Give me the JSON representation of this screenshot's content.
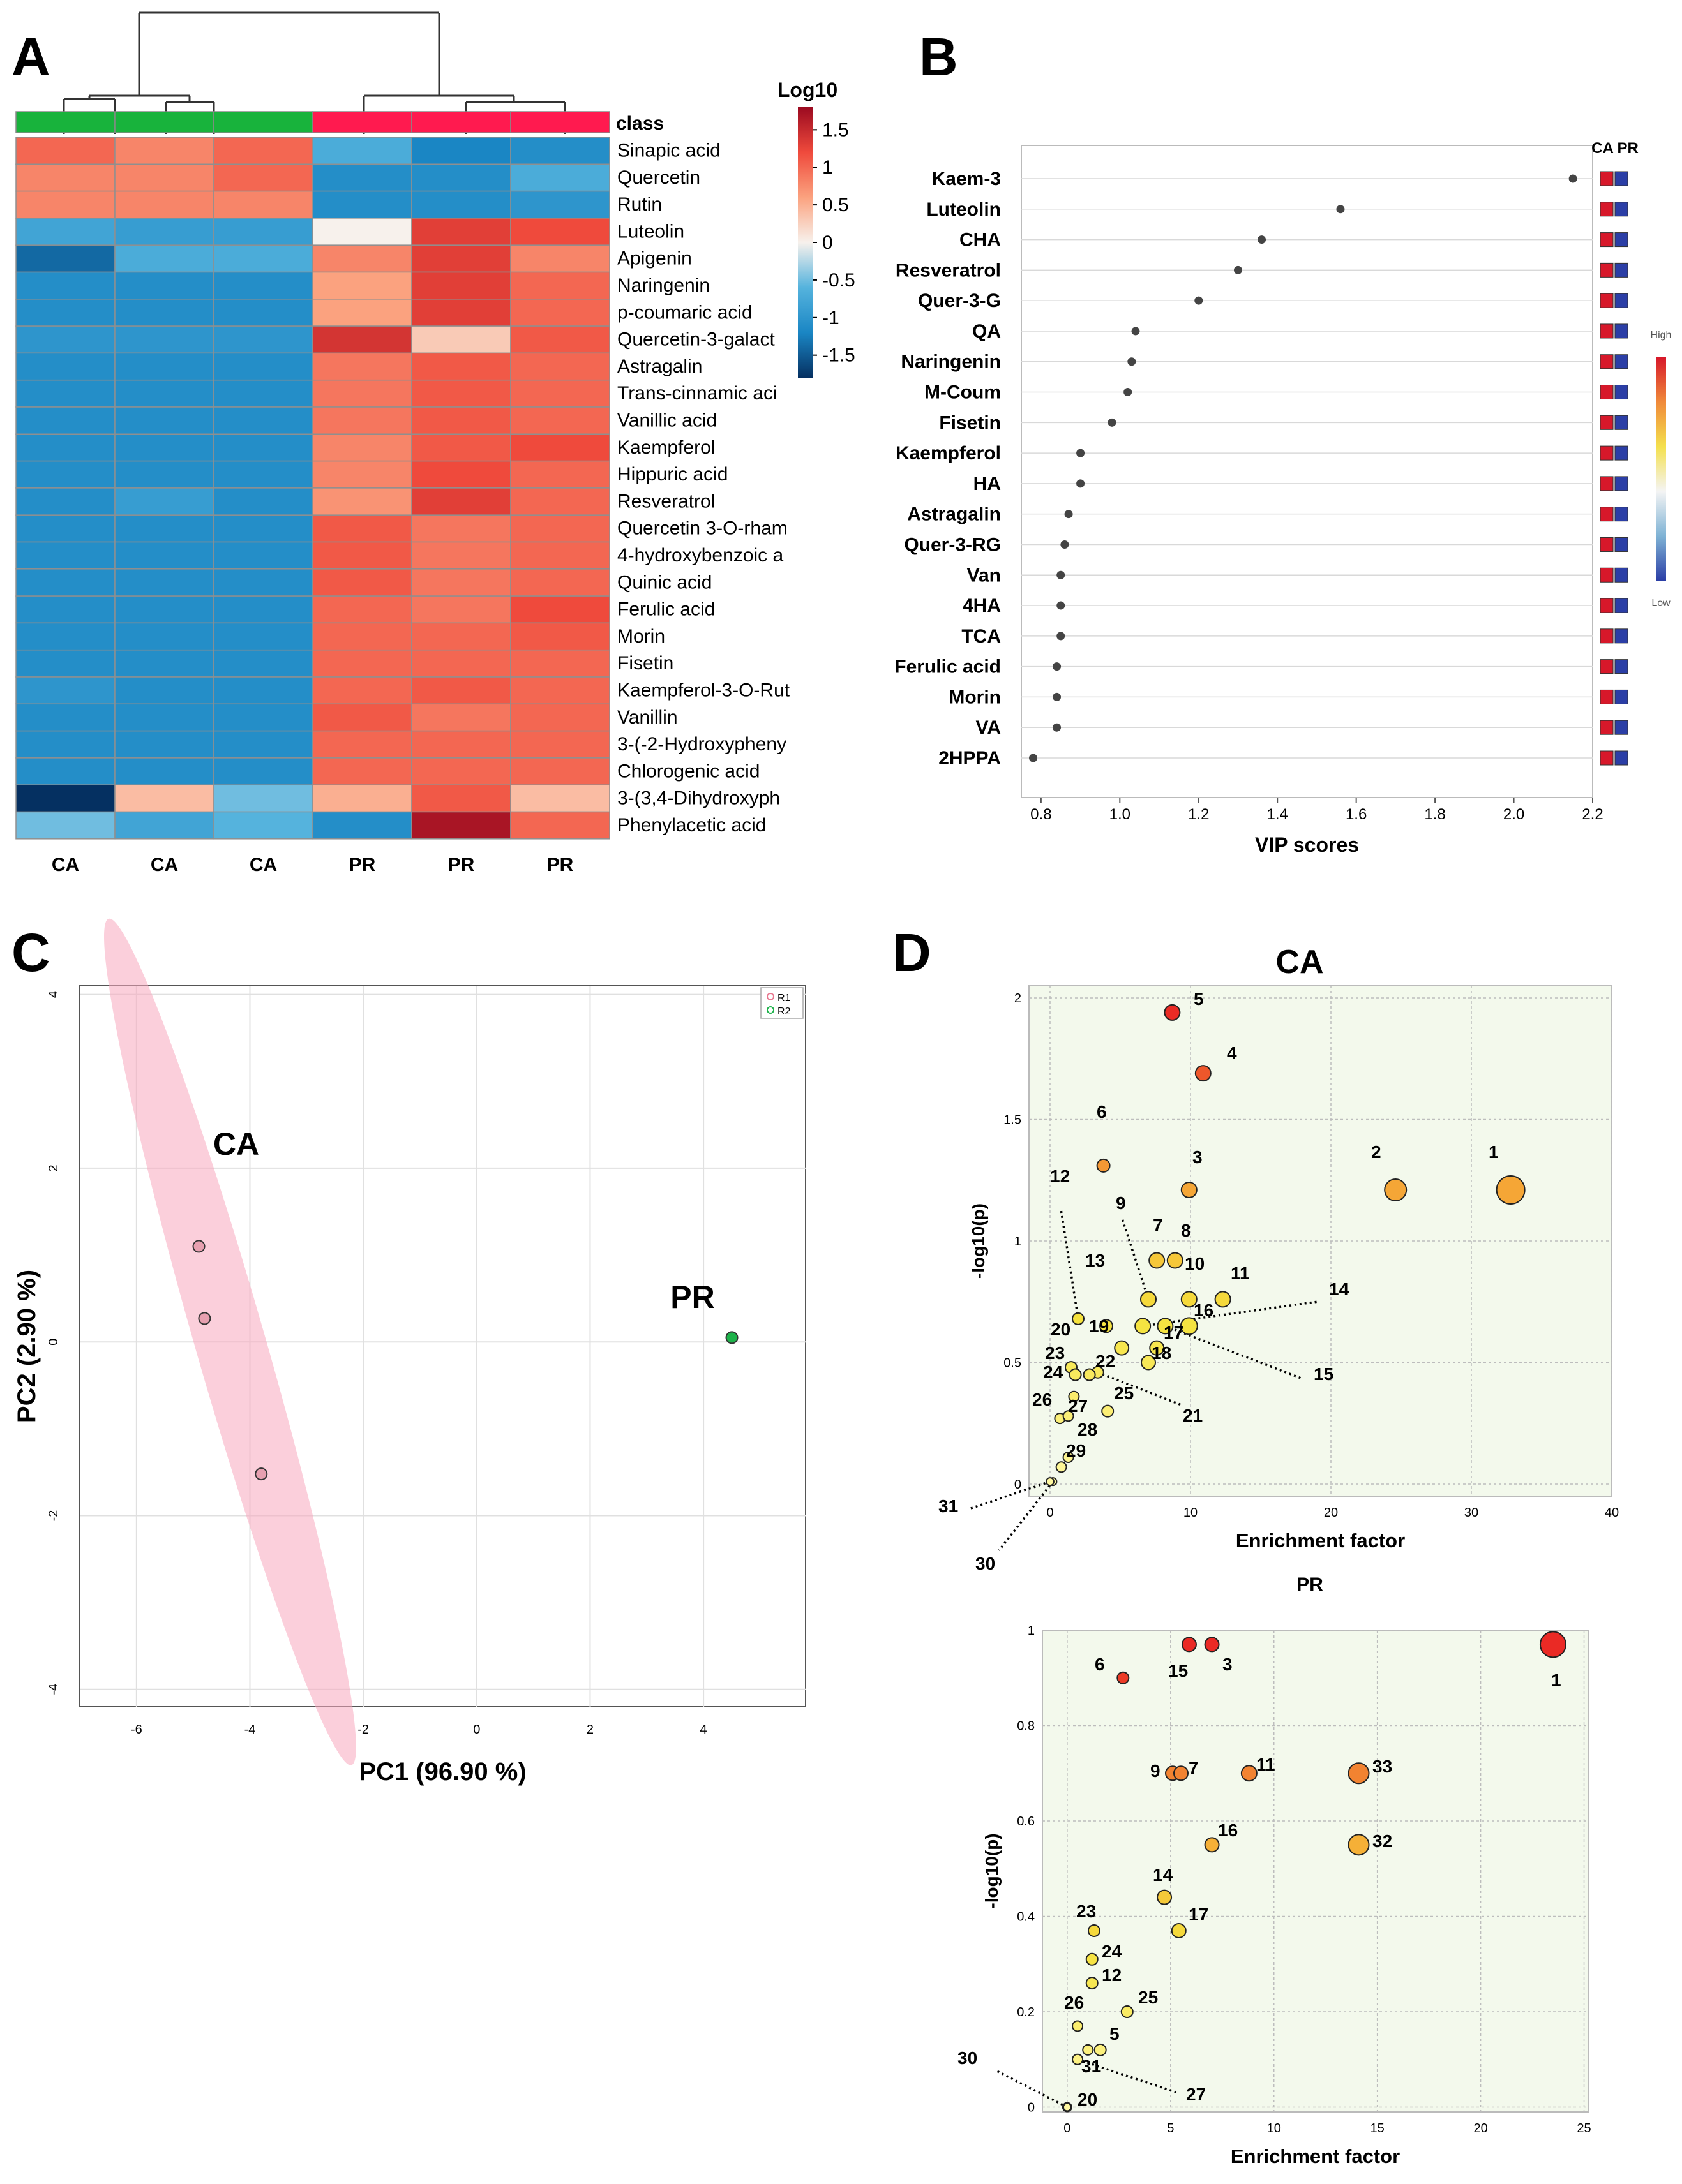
{
  "panel_labels": {
    "a": "A",
    "b": "B",
    "c": "C",
    "d": "D"
  },
  "chart_data": [
    {
      "type": "heatmap",
      "panel": "A",
      "legend_title": "Log10",
      "class_label": "class",
      "scale_ticks": [
        "1.5",
        "1",
        "0.5",
        "0",
        "-0.5",
        "-1",
        "-1.5"
      ],
      "scale_range": [
        -1.8,
        1.8
      ],
      "class_colors": {
        "CA": "#18b33c",
        "PR": "#ff1a4f"
      },
      "columns": [
        "CA",
        "CA",
        "CA",
        "PR",
        "PR",
        "PR"
      ],
      "rows": [
        {
          "name": "Sinapic acid",
          "values": [
            1.0,
            0.8,
            1.0,
            -0.7,
            -1.2,
            -1.1
          ]
        },
        {
          "name": "Quercetin",
          "values": [
            0.8,
            0.8,
            1.0,
            -1.1,
            -1.1,
            -0.7
          ]
        },
        {
          "name": "Rutin",
          "values": [
            0.8,
            0.8,
            0.8,
            -1.1,
            -1.1,
            -1.0
          ]
        },
        {
          "name": "Luteolin",
          "values": [
            -0.8,
            -0.9,
            -0.9,
            0.0,
            1.3,
            1.2
          ]
        },
        {
          "name": "Apigenin",
          "values": [
            -1.4,
            -0.7,
            -0.7,
            0.8,
            1.3,
            0.8
          ]
        },
        {
          "name": "Naringenin",
          "values": [
            -1.1,
            -1.1,
            -1.1,
            0.6,
            1.3,
            1.0
          ]
        },
        {
          "name": "p-coumaric acid",
          "values": [
            -1.1,
            -1.1,
            -1.1,
            0.6,
            1.3,
            1.0
          ]
        },
        {
          "name": "Quercetin-3-galact",
          "values": [
            -1.0,
            -1.0,
            -1.0,
            1.4,
            0.3,
            1.1
          ]
        },
        {
          "name": "Astragalin",
          "values": [
            -1.1,
            -1.1,
            -1.1,
            0.9,
            1.1,
            1.0
          ]
        },
        {
          "name": "Trans-cinnamic aci",
          "values": [
            -1.1,
            -1.1,
            -1.1,
            0.9,
            1.1,
            1.0
          ]
        },
        {
          "name": "Vanillic acid",
          "values": [
            -1.1,
            -1.1,
            -1.1,
            0.9,
            1.1,
            1.0
          ]
        },
        {
          "name": "Kaempferol",
          "values": [
            -1.1,
            -1.1,
            -1.1,
            0.8,
            1.1,
            1.2
          ]
        },
        {
          "name": "Hippuric acid",
          "values": [
            -1.1,
            -1.1,
            -1.1,
            0.8,
            1.2,
            1.0
          ]
        },
        {
          "name": "Resveratrol",
          "values": [
            -1.1,
            -0.9,
            -1.1,
            0.7,
            1.3,
            1.0
          ]
        },
        {
          "name": "Quercetin 3-O-rham",
          "values": [
            -1.1,
            -1.1,
            -1.1,
            1.1,
            0.9,
            1.0
          ]
        },
        {
          "name": "4-hydroxybenzoic a",
          "values": [
            -1.1,
            -1.1,
            -1.1,
            1.1,
            0.9,
            1.0
          ]
        },
        {
          "name": "Quinic acid",
          "values": [
            -1.1,
            -1.1,
            -1.1,
            1.1,
            0.9,
            1.0
          ]
        },
        {
          "name": "Ferulic acid",
          "values": [
            -1.1,
            -1.1,
            -1.1,
            1.0,
            0.9,
            1.2
          ]
        },
        {
          "name": "Morin",
          "values": [
            -1.1,
            -1.1,
            -1.1,
            1.0,
            1.0,
            1.1
          ]
        },
        {
          "name": "Fisetin",
          "values": [
            -1.1,
            -1.1,
            -1.1,
            1.0,
            1.0,
            1.0
          ]
        },
        {
          "name": "Kaempferol-3-O-Rut",
          "values": [
            -1.0,
            -1.1,
            -1.1,
            1.0,
            1.1,
            1.0
          ]
        },
        {
          "name": "Vanillin",
          "values": [
            -1.1,
            -1.1,
            -1.1,
            1.1,
            0.9,
            1.0
          ]
        },
        {
          "name": "3-(-2-Hydroxypheny",
          "values": [
            -1.1,
            -1.1,
            -1.1,
            1.0,
            1.0,
            1.0
          ]
        },
        {
          "name": "Chlorogenic acid",
          "values": [
            -1.1,
            -1.1,
            -1.1,
            1.0,
            1.0,
            1.0
          ]
        },
        {
          "name": "3-(3,4-Dihydroxyph",
          "values": [
            -1.8,
            0.4,
            -0.5,
            0.5,
            1.1,
            0.4
          ]
        },
        {
          "name": "Phenylacetic acid",
          "values": [
            -0.5,
            -0.8,
            -0.6,
            -1.1,
            1.7,
            1.0
          ]
        }
      ]
    },
    {
      "type": "scatter",
      "panel": "B",
      "xlabel": "VIP scores",
      "xlim": [
        0.75,
        2.2
      ],
      "xticks": [
        "0.8",
        "1.0",
        "1.2",
        "1.4",
        "1.6",
        "1.8",
        "2.0",
        "2.2"
      ],
      "group_header": "CA PR",
      "legend_high": "High",
      "legend_low": "Low",
      "features": [
        {
          "name": "Kaem-3",
          "vip": 2.15
        },
        {
          "name": "Luteolin",
          "vip": 1.56
        },
        {
          "name": "CHA",
          "vip": 1.36
        },
        {
          "name": "Resveratrol",
          "vip": 1.3
        },
        {
          "name": "Quer-3-G",
          "vip": 1.2
        },
        {
          "name": "QA",
          "vip": 1.04
        },
        {
          "name": "Naringenin",
          "vip": 1.03
        },
        {
          "name": "M-Coum",
          "vip": 1.02
        },
        {
          "name": "Fisetin",
          "vip": 0.98
        },
        {
          "name": "Kaempferol",
          "vip": 0.9
        },
        {
          "name": "HA",
          "vip": 0.9
        },
        {
          "name": "Astragalin",
          "vip": 0.87
        },
        {
          "name": "Quer-3-RG",
          "vip": 0.86
        },
        {
          "name": "Van",
          "vip": 0.85
        },
        {
          "name": "4HA",
          "vip": 0.85
        },
        {
          "name": "TCA",
          "vip": 0.85
        },
        {
          "name": "Ferulic acid",
          "vip": 0.84
        },
        {
          "name": "Morin",
          "vip": 0.84
        },
        {
          "name": "VA",
          "vip": 0.84
        },
        {
          "name": "2HPPA",
          "vip": 0.78
        }
      ],
      "colors": {
        "CA": "#d7182a",
        "PR": "#2b3ea6"
      }
    },
    {
      "type": "scatter",
      "panel": "C",
      "xlabel": "PC1 (96.90 %)",
      "ylabel": "PC2 (2.90 %)",
      "xlim": [
        -7,
        5.8
      ],
      "ylim": [
        -4.2,
        4.1
      ],
      "xticks": [
        "-6",
        "-4",
        "-2",
        "0",
        "2",
        "4"
      ],
      "yticks": [
        "4",
        "2",
        "0",
        "-2",
        "-4"
      ],
      "legend": [
        "R1",
        "R2"
      ],
      "group_labels": [
        "CA",
        "PR"
      ],
      "series": [
        {
          "name": "CA",
          "points": [
            [
              -4.9,
              1.1
            ],
            [
              -4.8,
              0.27
            ],
            [
              -3.8,
              -1.52
            ]
          ]
        },
        {
          "name": "PR",
          "points": [
            [
              4.5,
              0.05
            ]
          ]
        }
      ]
    },
    {
      "type": "scatter",
      "panel": "D-top",
      "title": "CA",
      "xlabel": "Enrichment factor",
      "ylabel": "-log10(p)",
      "xlim": [
        -1.5,
        40
      ],
      "ylim": [
        -0.05,
        2.05
      ],
      "xticks": [
        "0",
        "10",
        "20",
        "30",
        "40"
      ],
      "yticks": [
        "0",
        "0.5",
        "1",
        "1.5",
        "2"
      ],
      "points": [
        {
          "label": "1",
          "x": 32.8,
          "y": 1.21,
          "size": 2.2
        },
        {
          "label": "2",
          "x": 24.6,
          "y": 1.21,
          "size": 1.7
        },
        {
          "label": "3",
          "x": 9.9,
          "y": 1.21,
          "size": 1.2
        },
        {
          "label": "4",
          "x": 10.9,
          "y": 1.69,
          "size": 1.2
        },
        {
          "label": "5",
          "x": 8.7,
          "y": 1.94,
          "size": 1.2
        },
        {
          "label": "6",
          "x": 3.8,
          "y": 1.31,
          "size": 1.0
        },
        {
          "label": "7",
          "x": 7.6,
          "y": 0.92,
          "size": 1.2
        },
        {
          "label": "8",
          "x": 8.9,
          "y": 0.92,
          "size": 1.2
        },
        {
          "label": "9",
          "x": 7.0,
          "y": 0.76,
          "size": 1.2
        },
        {
          "label": "10",
          "x": 9.9,
          "y": 0.76,
          "size": 1.2
        },
        {
          "label": "11",
          "x": 12.3,
          "y": 0.76,
          "size": 1.2
        },
        {
          "label": "12",
          "x": 2.0,
          "y": 0.68,
          "size": 0.9
        },
        {
          "label": "13",
          "x": 4.0,
          "y": 0.65,
          "size": 1.0
        },
        {
          "label": "14",
          "x": 6.6,
          "y": 0.65,
          "size": 1.2
        },
        {
          "label": "15",
          "x": 8.2,
          "y": 0.65,
          "size": 1.2
        },
        {
          "label": "16",
          "x": 9.9,
          "y": 0.65,
          "size": 1.3
        },
        {
          "label": "17",
          "x": 7.6,
          "y": 0.56,
          "size": 1.1
        },
        {
          "label": "18",
          "x": 7.0,
          "y": 0.5,
          "size": 1.1
        },
        {
          "label": "19",
          "x": 5.1,
          "y": 0.56,
          "size": 1.1
        },
        {
          "label": "20",
          "x": 1.5,
          "y": 0.48,
          "size": 0.9
        },
        {
          "label": "21",
          "x": 3.4,
          "y": 0.46,
          "size": 0.9
        },
        {
          "label": "22",
          "x": 2.8,
          "y": 0.45,
          "size": 0.9
        },
        {
          "label": "23",
          "x": 1.8,
          "y": 0.45,
          "size": 0.9
        },
        {
          "label": "24",
          "x": 1.7,
          "y": 0.36,
          "size": 0.8
        },
        {
          "label": "25",
          "x": 4.1,
          "y": 0.3,
          "size": 0.9
        },
        {
          "label": "26",
          "x": 0.7,
          "y": 0.27,
          "size": 0.8
        },
        {
          "label": "27",
          "x": 1.3,
          "y": 0.28,
          "size": 0.8
        },
        {
          "label": "28",
          "x": 1.3,
          "y": 0.11,
          "size": 0.8
        },
        {
          "label": "29",
          "x": 0.8,
          "y": 0.07,
          "size": 0.8
        },
        {
          "label": "30",
          "x": 0.2,
          "y": 0.01,
          "size": 0.6
        },
        {
          "label": "31",
          "x": 0.0,
          "y": 0.01,
          "size": 0.6
        }
      ]
    },
    {
      "type": "scatter",
      "panel": "D-bottom",
      "title": "PR",
      "xlabel": "Enrichment factor",
      "ylabel": "-log10(p)",
      "xlim": [
        -1.2,
        25.2
      ],
      "ylim": [
        -0.01,
        1.0
      ],
      "xticks": [
        "0",
        "5",
        "10",
        "15",
        "20",
        "25"
      ],
      "yticks": [
        "0",
        "0.2",
        "0.4",
        "0.6",
        "0.8",
        "1"
      ],
      "points": [
        {
          "label": "1",
          "x": 23.5,
          "y": 0.97,
          "size": 2.0
        },
        {
          "label": "3",
          "x": 7.0,
          "y": 0.97,
          "size": 1.1
        },
        {
          "label": "15",
          "x": 5.9,
          "y": 0.97,
          "size": 1.1
        },
        {
          "label": "6",
          "x": 2.7,
          "y": 0.9,
          "size": 0.9
        },
        {
          "label": "9",
          "x": 5.1,
          "y": 0.7,
          "size": 1.1
        },
        {
          "label": "7",
          "x": 5.5,
          "y": 0.7,
          "size": 1.1
        },
        {
          "label": "11",
          "x": 8.8,
          "y": 0.7,
          "size": 1.2
        },
        {
          "label": "33",
          "x": 14.1,
          "y": 0.7,
          "size": 1.6
        },
        {
          "label": "16",
          "x": 7.0,
          "y": 0.55,
          "size": 1.1
        },
        {
          "label": "32",
          "x": 14.1,
          "y": 0.55,
          "size": 1.6
        },
        {
          "label": "14",
          "x": 4.7,
          "y": 0.44,
          "size": 1.1
        },
        {
          "label": "17",
          "x": 5.4,
          "y": 0.37,
          "size": 1.1
        },
        {
          "label": "23",
          "x": 1.3,
          "y": 0.37,
          "size": 0.9
        },
        {
          "label": "24",
          "x": 1.2,
          "y": 0.31,
          "size": 0.9
        },
        {
          "label": "12",
          "x": 1.2,
          "y": 0.26,
          "size": 0.9
        },
        {
          "label": "25",
          "x": 2.9,
          "y": 0.2,
          "size": 0.9
        },
        {
          "label": "26",
          "x": 0.5,
          "y": 0.17,
          "size": 0.8
        },
        {
          "label": "5",
          "x": 1.6,
          "y": 0.12,
          "size": 0.9
        },
        {
          "label": "31",
          "x": 1.0,
          "y": 0.12,
          "size": 0.8
        },
        {
          "label": "27",
          "x": 0.5,
          "y": 0.1,
          "size": 0.8
        },
        {
          "label": "20",
          "x": 0.0,
          "y": 0.0,
          "size": 0.7
        },
        {
          "label": "30",
          "x": 0.0,
          "y": 0.0,
          "size": 0.6
        }
      ]
    }
  ]
}
